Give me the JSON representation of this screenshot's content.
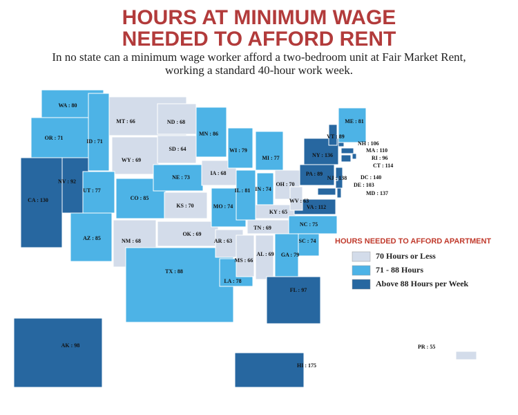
{
  "header": {
    "title_line1": "HOURS AT MINIMUM WAGE",
    "title_line2": "NEEDED TO AFFORD RENT",
    "subtitle_line1": "In no state can a minimum wage worker afford a two-bedroom unit at Fair Market Rent,",
    "subtitle_line2": "working a standard 40-hour work week."
  },
  "legend": {
    "title": "HOURS NEEDED TO AFFORD APARTMENT",
    "items": [
      {
        "label": "70 Hours or Less",
        "color": "#d3dcea",
        "max": 70
      },
      {
        "label": "71 - 88 Hours",
        "color": "#4db3e6",
        "max": 88
      },
      {
        "label": "Above 88 Hours per Week",
        "color": "#2767a0"
      }
    ]
  },
  "states": [
    {
      "label": "WA : 80",
      "hours": 80
    },
    {
      "label": "OR : 71",
      "hours": 71
    },
    {
      "label": "CA : 130",
      "hours": 130
    },
    {
      "label": "NV : 92",
      "hours": 92
    },
    {
      "label": "ID : 71",
      "hours": 71
    },
    {
      "label": "MT : 66",
      "hours": 66
    },
    {
      "label": "WY : 69",
      "hours": 69
    },
    {
      "label": "UT : 77",
      "hours": 77
    },
    {
      "label": "CO : 85",
      "hours": 85
    },
    {
      "label": "AZ : 85",
      "hours": 85
    },
    {
      "label": "NM : 68",
      "hours": 68
    },
    {
      "label": "ND : 68",
      "hours": 68
    },
    {
      "label": "SD : 64",
      "hours": 64
    },
    {
      "label": "NE : 73",
      "hours": 73
    },
    {
      "label": "KS : 70",
      "hours": 70
    },
    {
      "label": "OK : 69",
      "hours": 69
    },
    {
      "label": "TX : 88",
      "hours": 88
    },
    {
      "label": "MN : 86",
      "hours": 86
    },
    {
      "label": "IA : 68",
      "hours": 68
    },
    {
      "label": "MO : 74",
      "hours": 74
    },
    {
      "label": "AR : 63",
      "hours": 63
    },
    {
      "label": "LA : 78",
      "hours": 78
    },
    {
      "label": "WI : 79",
      "hours": 79
    },
    {
      "label": "IL : 81",
      "hours": 81
    },
    {
      "label": "MI : 77",
      "hours": 77
    },
    {
      "label": "IN : 74",
      "hours": 74
    },
    {
      "label": "OH : 70",
      "hours": 70
    },
    {
      "label": "KY : 65",
      "hours": 65
    },
    {
      "label": "TN : 69",
      "hours": 69
    },
    {
      "label": "MS : 66",
      "hours": 66
    },
    {
      "label": "AL : 69",
      "hours": 69
    },
    {
      "label": "GA : 79",
      "hours": 79
    },
    {
      "label": "FL : 97",
      "hours": 97
    },
    {
      "label": "SC : 74",
      "hours": 74
    },
    {
      "label": "NC : 75",
      "hours": 75
    },
    {
      "label": "VA : 112",
      "hours": 112
    },
    {
      "label": "WV : 63",
      "hours": 63
    },
    {
      "label": "PA : 89",
      "hours": 89
    },
    {
      "label": "NY : 136",
      "hours": 136
    },
    {
      "label": "VT : 89",
      "hours": 89
    },
    {
      "label": "NH : 106",
      "hours": 106
    },
    {
      "label": "ME : 81",
      "hours": 81
    },
    {
      "label": "MA : 110",
      "hours": 110
    },
    {
      "label": "RI : 96",
      "hours": 96
    },
    {
      "label": "CT : 114",
      "hours": 114
    },
    {
      "label": "NJ : 138",
      "hours": 138
    },
    {
      "label": "DE : 103",
      "hours": 103
    },
    {
      "label": "MD : 137",
      "hours": 137
    },
    {
      "label": "DC : 140",
      "hours": 140
    },
    {
      "label": "AK : 98",
      "hours": 98
    },
    {
      "label": "HI : 175",
      "hours": 175
    },
    {
      "label": "PR : 55",
      "hours": 55
    }
  ]
}
